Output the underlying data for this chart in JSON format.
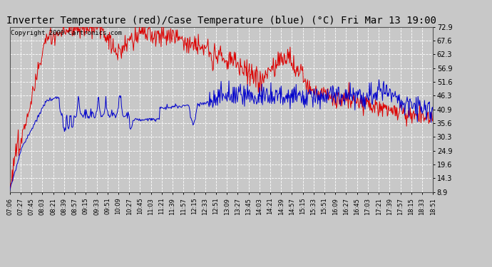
{
  "title": "Inverter Temperature (red)/Case Temperature (blue) (°C) Fri Mar 13 19:00",
  "copyright": "Copyright 2009 Cartronics.com",
  "ylim": [
    8.9,
    72.9
  ],
  "yticks": [
    8.9,
    14.3,
    19.6,
    24.9,
    30.3,
    35.6,
    40.9,
    46.3,
    51.6,
    56.9,
    62.3,
    67.6,
    72.9
  ],
  "background_color": "#c8c8c8",
  "plot_bg_color": "#c8c8c8",
  "grid_color": "#ffffff",
  "red_color": "#dd0000",
  "blue_color": "#0000cc",
  "title_fontsize": 10,
  "copyright_fontsize": 6.5,
  "xtick_labels": [
    "07:06",
    "07:27",
    "07:45",
    "08:03",
    "08:21",
    "08:39",
    "08:57",
    "09:15",
    "09:33",
    "09:51",
    "10:09",
    "10:27",
    "10:45",
    "11:03",
    "11:21",
    "11:39",
    "11:57",
    "12:15",
    "12:33",
    "12:51",
    "13:09",
    "13:27",
    "13:45",
    "14:03",
    "14:21",
    "14:39",
    "14:57",
    "15:15",
    "15:33",
    "15:51",
    "16:09",
    "16:27",
    "16:45",
    "17:03",
    "17:21",
    "17:39",
    "17:57",
    "18:15",
    "18:33",
    "18:51"
  ]
}
